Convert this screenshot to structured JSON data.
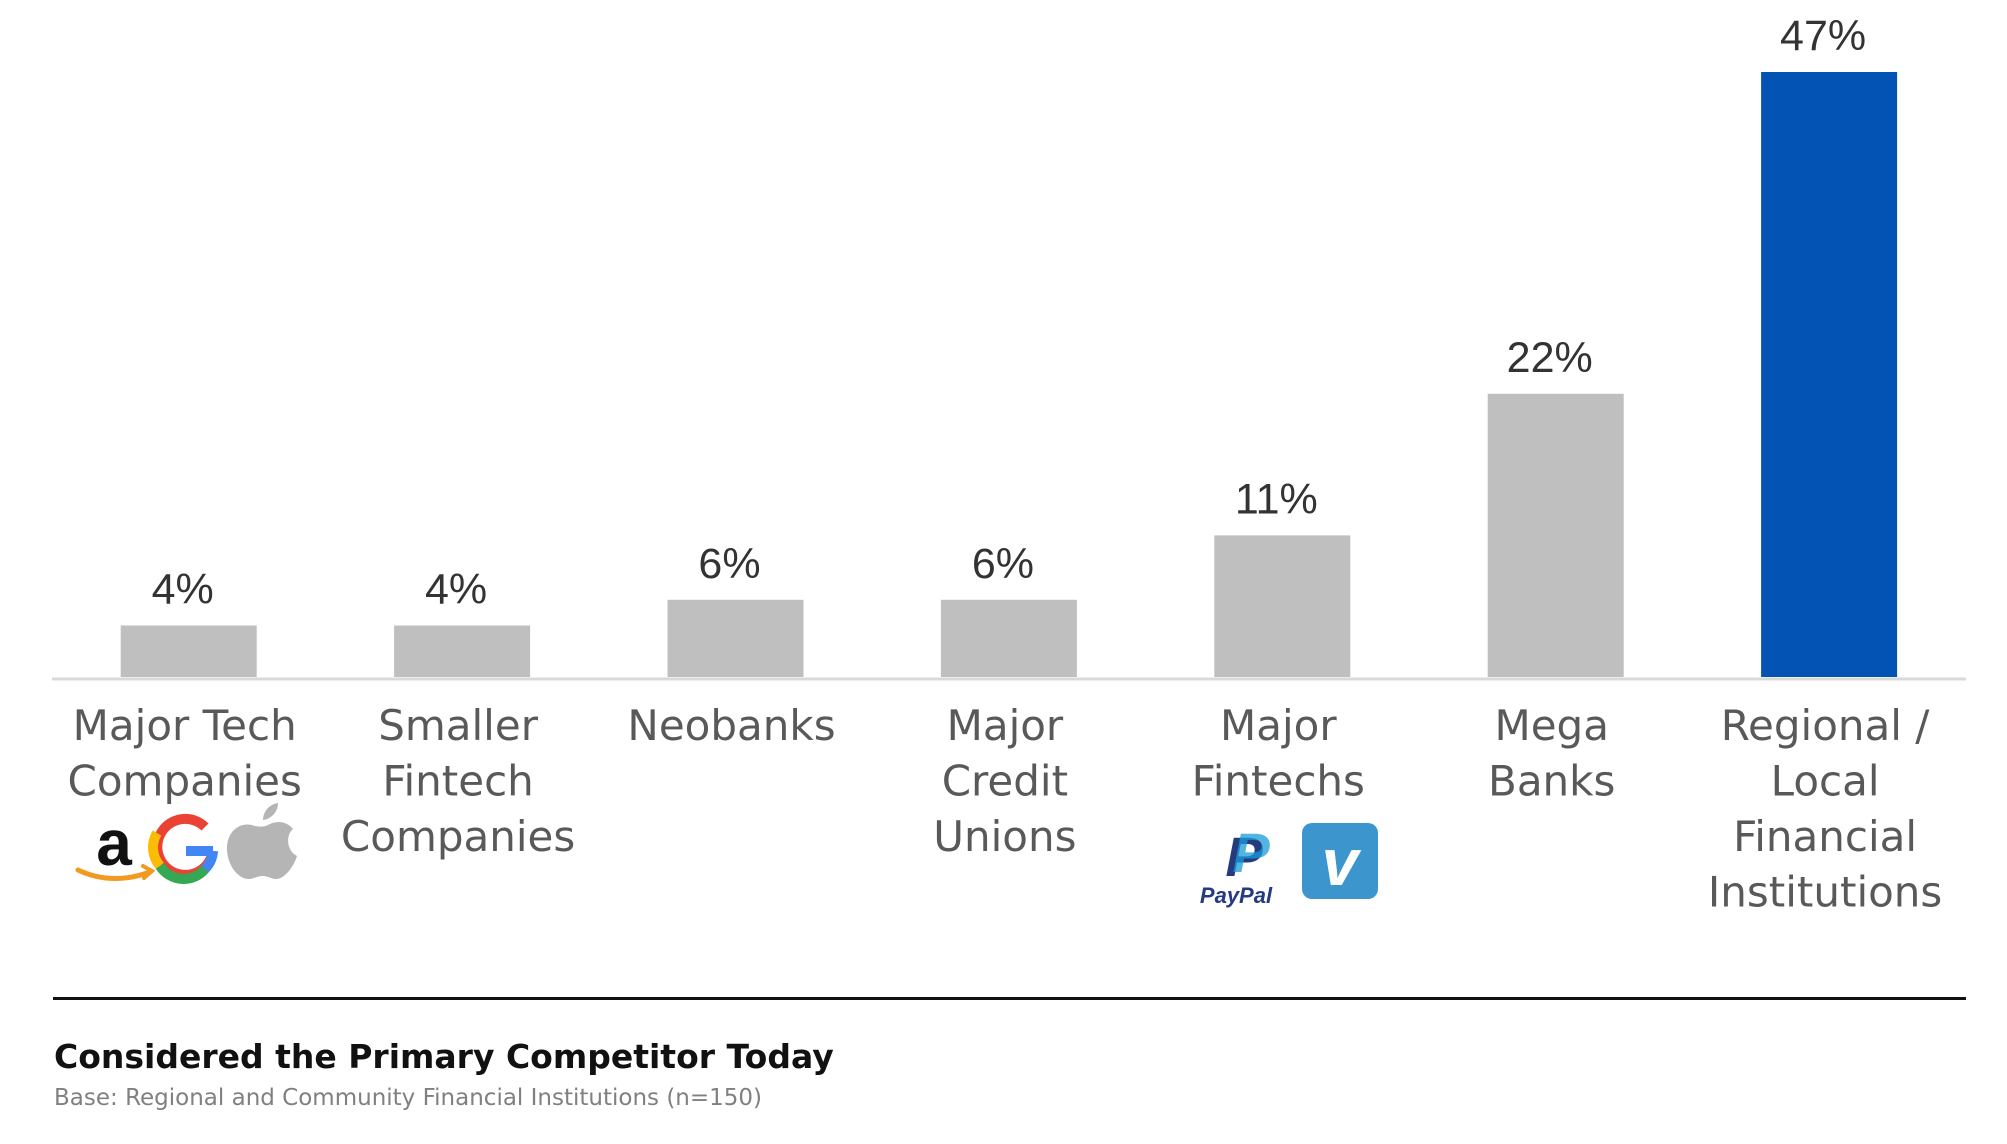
{
  "chart_data": {
    "type": "bar",
    "categories": [
      [
        "Major Tech",
        "Companies"
      ],
      [
        "Smaller",
        "Fintech",
        "Companies"
      ],
      [
        "Neobanks"
      ],
      [
        "Major",
        "Credit",
        "Unions"
      ],
      [
        "Major",
        "Fintechs"
      ],
      [
        "Mega",
        "Banks"
      ],
      [
        "Regional /",
        "Local",
        "Financial",
        "Institutions"
      ]
    ],
    "values": [
      4,
      4,
      6,
      6,
      11,
      22,
      47
    ],
    "value_labels": [
      "4%",
      "4%",
      "6%",
      "6%",
      "11%",
      "22%",
      "47%"
    ],
    "ylim": [
      0,
      47
    ],
    "grid": false,
    "colors": {
      "default_bar": "#bfbfbf",
      "highlight_bar": "#0353b4",
      "baseline": "#d9d9d9"
    },
    "highlight_index": 6,
    "logos": [
      {
        "category_index": 0,
        "icons": [
          "amazon-logo",
          "google-logo",
          "apple-logo"
        ]
      },
      {
        "category_index": 4,
        "icons": [
          "paypal-logo",
          "venmo-logo"
        ]
      }
    ]
  },
  "logo_text": {
    "amazon": "a",
    "google": "G",
    "paypal_mark": "P",
    "paypal_word": "PayPal",
    "venmo": "v"
  },
  "footer": {
    "title": "Considered the Primary Competitor Today",
    "base": "Base: Regional and Community Financial Institutions (n=150)"
  }
}
